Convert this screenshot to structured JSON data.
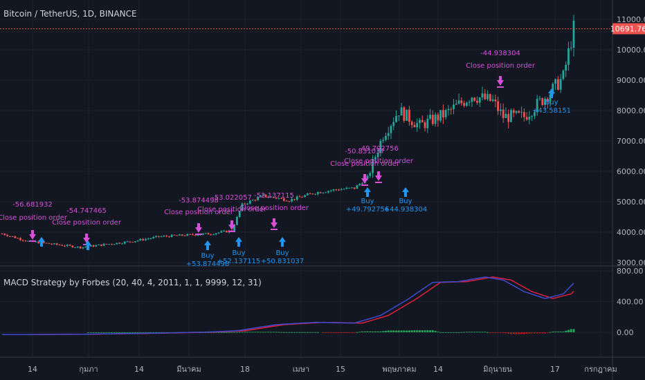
{
  "header": {
    "symbol_title": "Bitcoin / TetherUS, 1D, BINANCE",
    "indicator_title": "MACD Strategy by Forbes (20, 40, 4, 2011, 1, 1, 9999, 12, 31)"
  },
  "last_price_label": "10691.76",
  "colors": {
    "background": "#131722",
    "up": "#26a69a",
    "down": "#ef5350",
    "close_order": "#d94fd9",
    "buy": "#2196f3",
    "macd_line": "#3f4bd0",
    "signal_line": "#e01f3d",
    "hist_pos": "#26a65b",
    "hist_neg": "#b71c1c",
    "price_line": "#ef5350",
    "text": "#b2b5be"
  },
  "price_axis": {
    "ticks": [
      "11000.00",
      "10000.00",
      "9000.00",
      "8000.00",
      "7000.00",
      "6000.00",
      "5000.00",
      "4000.00",
      "3000.00"
    ],
    "values": [
      11000,
      10000,
      9000,
      8000,
      7000,
      6000,
      5000,
      4000,
      3000
    ]
  },
  "macd_axis": {
    "ticks": [
      "800.00",
      "400.00",
      "0.00"
    ],
    "values": [
      800,
      400,
      0
    ]
  },
  "time_axis": {
    "labels": [
      "14",
      "กุมภา",
      "14",
      "มีนาคม",
      "18",
      "เมษา",
      "15",
      "พฤษภาคม",
      "14",
      "มิถุนายน",
      "17",
      "กรกฎาคม"
    ]
  },
  "chart_data": {
    "type": "candlestick",
    "last_close": 10691.76,
    "price_range": [
      3000,
      11400
    ],
    "close_orders": [
      {
        "label": "Close position order",
        "value": "-56.681932"
      },
      {
        "label": "Close position order",
        "value": "-54.747465"
      },
      {
        "label": "Close position order",
        "value": "-53.874498"
      },
      {
        "label": "Close position order",
        "value": "-53.022057"
      },
      {
        "label": "Close position order",
        "value": "-52.137115"
      },
      {
        "label": "Close position order",
        "value": "-50.831037"
      },
      {
        "label": "Close position order",
        "value": "-49.792756"
      },
      {
        "label": "Close position order",
        "value": "-44.938304"
      }
    ],
    "buy_orders": [
      {
        "label": "Buy",
        "value": "+53.874498"
      },
      {
        "label": "Buy",
        "value": "+52.137115"
      },
      {
        "label": "Buy",
        "value": "+50.831037"
      },
      {
        "label": "Buy",
        "value": "+49.792756"
      },
      {
        "label": "Buy",
        "value": "+44.938304"
      },
      {
        "label": "Buy",
        "value": "+43.58151"
      }
    ]
  }
}
